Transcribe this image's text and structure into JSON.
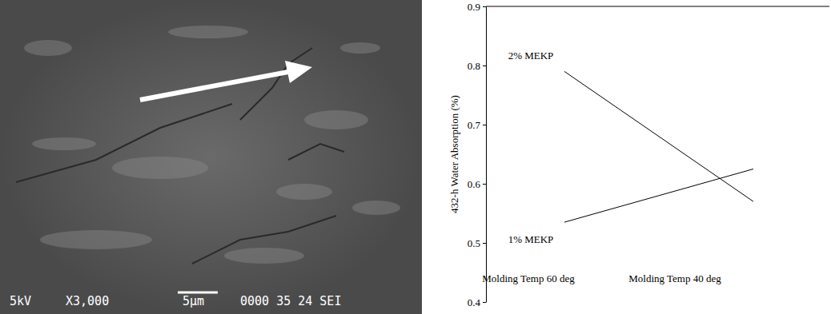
{
  "micrograph": {
    "texts": [
      "5kV",
      "X3,000",
      "5μm",
      "0000 35 24 SEI"
    ]
  },
  "chart_data": {
    "type": "line",
    "y_label": "432-h Water Absorption (%)",
    "categories": [
      "Molding Temp 60 deg",
      "Molding Temp 40 deg"
    ],
    "series": [
      {
        "name": "2% MEKP",
        "color": "#000000",
        "values": [
          0.79,
          0.57
        ]
      },
      {
        "name": "1% MEKP",
        "color": "#000000",
        "values": [
          0.535,
          0.625
        ]
      }
    ],
    "ylim": [
      0.4,
      0.9
    ],
    "yticks": [
      0.4,
      0.5,
      0.6,
      0.7,
      0.8,
      0.9
    ],
    "grid": false
  }
}
